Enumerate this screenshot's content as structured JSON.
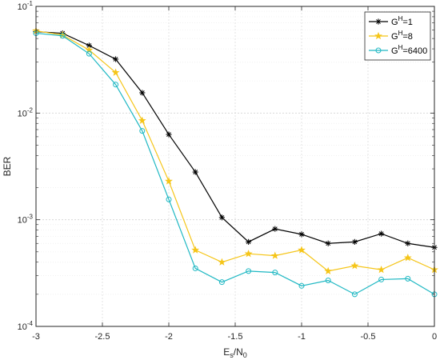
{
  "chart_data": {
    "type": "line",
    "title": "",
    "xlabel": {
      "base": "E",
      "sub1": "s",
      "mid": "/N",
      "sub2": "0"
    },
    "ylabel": "BER",
    "xlim": [
      -3,
      0
    ],
    "ylim": [
      0.0001,
      0.1
    ],
    "yscale": "log",
    "grid": true,
    "legend_position": "top-right",
    "x_ticks": [
      "-3",
      "-2.5",
      "-2",
      "-1.5",
      "-1",
      "-0.5",
      "0"
    ],
    "y_ticks": [
      {
        "value": 0.1,
        "base": "10",
        "exp": "-1"
      },
      {
        "value": 0.01,
        "base": "10",
        "exp": "-2"
      },
      {
        "value": 0.001,
        "base": "10",
        "exp": "-3"
      },
      {
        "value": 0.0001,
        "base": "10",
        "exp": "-4"
      }
    ],
    "x": [
      -3,
      -2.8,
      -2.6,
      -2.4,
      -2.2,
      -2.0,
      -1.8,
      -1.6,
      -1.4,
      -1.2,
      -1.0,
      -0.8,
      -0.6,
      -0.4,
      -0.2,
      0
    ],
    "series": [
      {
        "legend": {
          "base": "G",
          "sup": "H",
          "rest": "=1"
        },
        "color": "#000000",
        "marker": "asterisk",
        "values": [
          0.058,
          0.056,
          0.043,
          0.032,
          0.0155,
          0.0063,
          0.0028,
          0.00105,
          0.00062,
          0.00082,
          0.00073,
          0.0006,
          0.00062,
          0.00074,
          0.0006,
          0.00055
        ]
      },
      {
        "legend": {
          "base": "G",
          "sup": "H",
          "rest": "=8"
        },
        "color": "#F5C518",
        "marker": "star",
        "values": [
          0.059,
          0.054,
          0.039,
          0.024,
          0.0085,
          0.0023,
          0.00052,
          0.0004,
          0.00048,
          0.00046,
          0.00052,
          0.00033,
          0.00037,
          0.00034,
          0.00044,
          0.00034
        ]
      },
      {
        "legend": {
          "base": "G",
          "sup": "H",
          "rest": "=6400"
        },
        "color": "#1FB8C3",
        "marker": "circle",
        "values": [
          0.056,
          0.053,
          0.036,
          0.0185,
          0.0068,
          0.00155,
          0.00035,
          0.00026,
          0.00033,
          0.00032,
          0.00024,
          0.00027,
          0.0002,
          0.000275,
          0.00028,
          0.0002
        ]
      }
    ]
  }
}
